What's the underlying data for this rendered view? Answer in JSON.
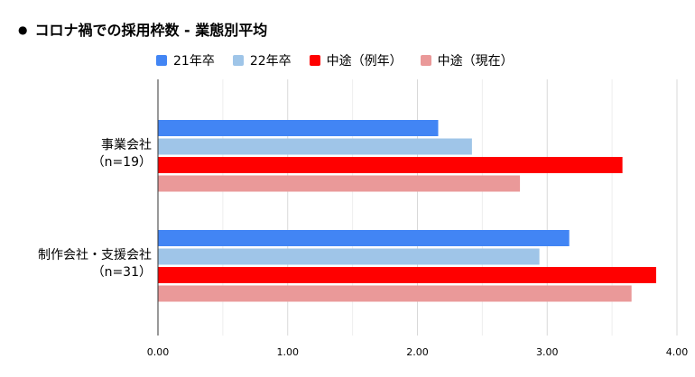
{
  "chart_data": {
    "type": "bar",
    "orientation": "horizontal",
    "title": "コロナ禍での採用枠数 - 業態別平均",
    "categories": [
      [
        "事業会社",
        "（n=19）"
      ],
      [
        "制作会社・支援会社",
        "（n=31）"
      ]
    ],
    "series": [
      {
        "name": "21年卒",
        "color": "#4285f4",
        "values": [
          2.16,
          3.17
        ]
      },
      {
        "name": "22年卒",
        "color": "#9fc5e8",
        "values": [
          2.42,
          2.94
        ]
      },
      {
        "name": "中途（例年）",
        "color": "#ff0000",
        "values": [
          3.58,
          3.84
        ]
      },
      {
        "name": "中途（現在）",
        "color": "#ea9999",
        "values": [
          2.79,
          3.65
        ]
      }
    ],
    "xlim": [
      0,
      4
    ],
    "ticks": [
      "0.00",
      "1.00",
      "2.00",
      "3.00",
      "4.00"
    ],
    "grid": true,
    "legend_position": "top"
  }
}
